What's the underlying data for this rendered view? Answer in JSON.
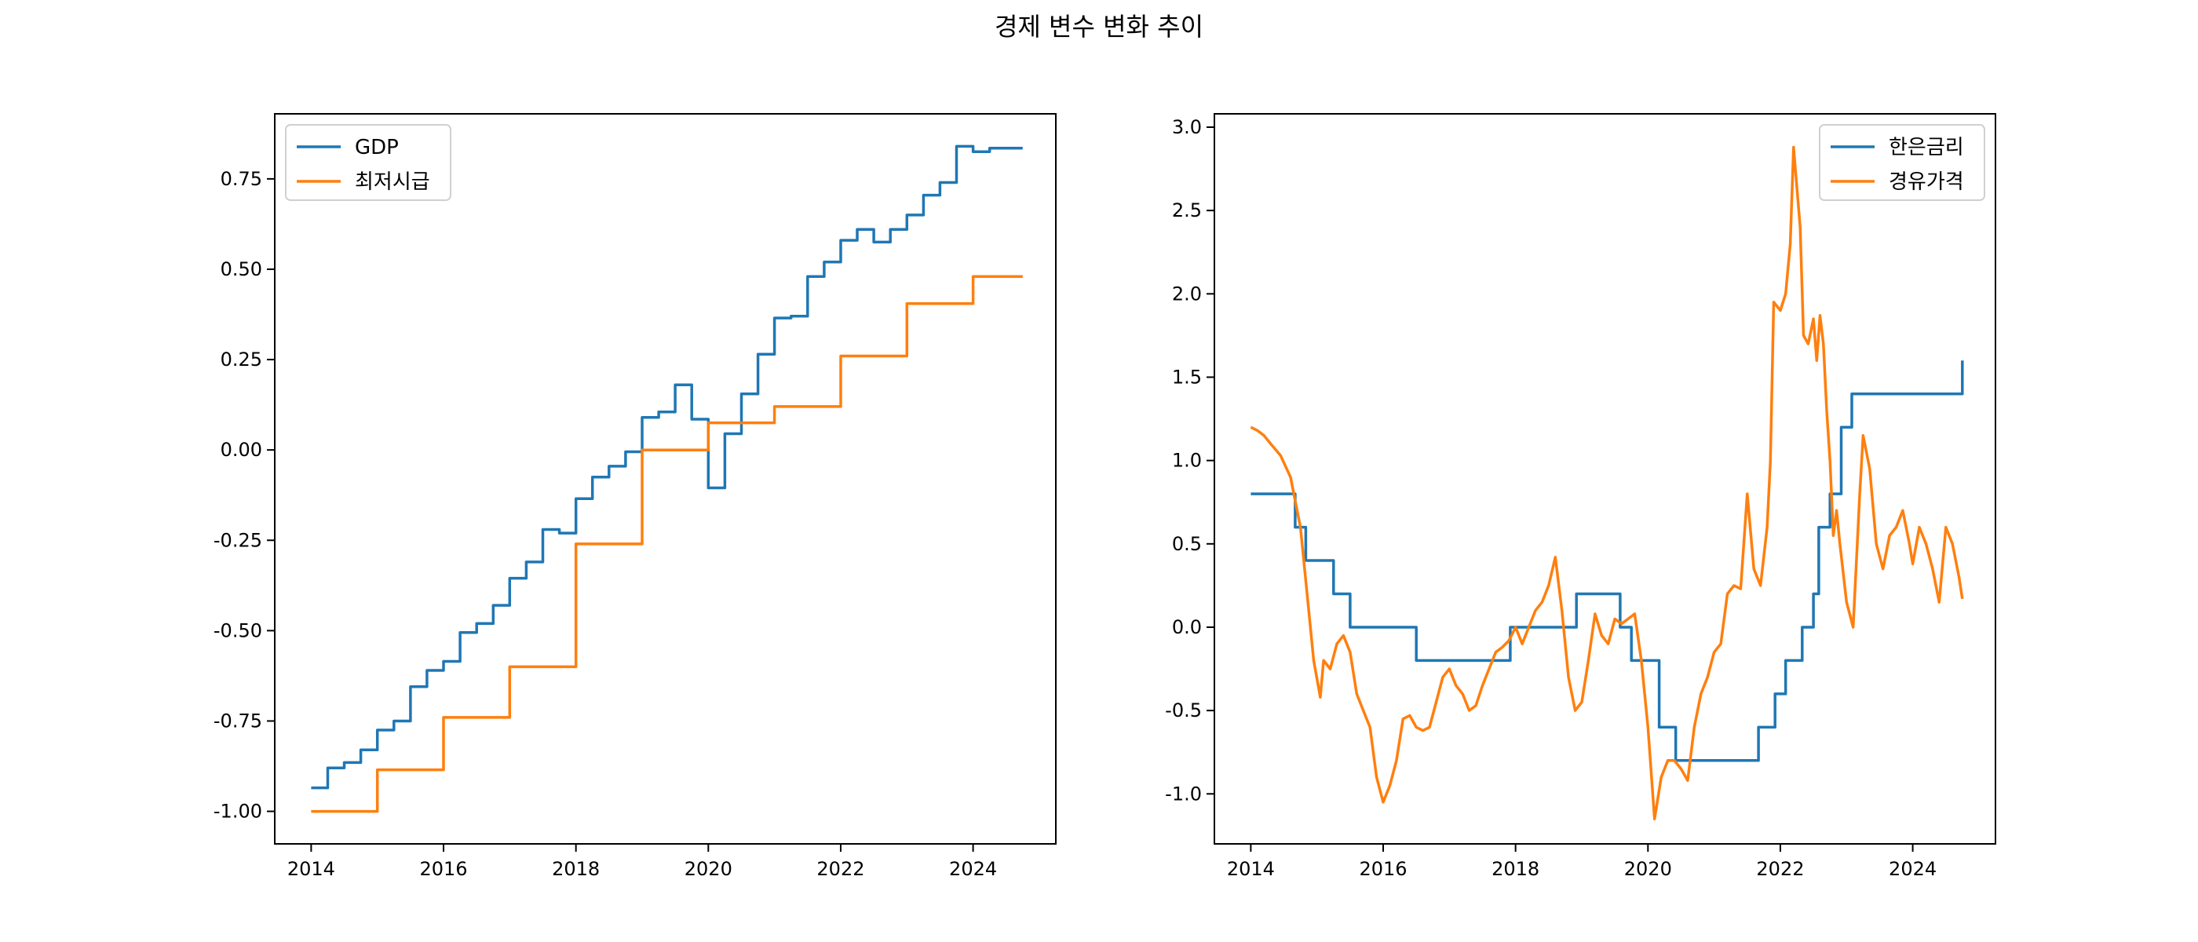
{
  "chart_data": {
    "title": "경제 변수 변화 추이",
    "panels": [
      {
        "type": "line",
        "legend": "top-left",
        "xlim": [
          2013.45,
          2025.25
        ],
        "ylim": [
          -1.09,
          0.93
        ],
        "xticks": [
          2014,
          2016,
          2018,
          2020,
          2022,
          2024
        ],
        "yticks": [
          -1.0,
          -0.75,
          -0.5,
          -0.25,
          0.0,
          0.25,
          0.5,
          0.75
        ],
        "ytick_labels": [
          "-1.00",
          "-0.75",
          "-0.50",
          "-0.25",
          "0.00",
          "0.25",
          "0.50",
          "0.75"
        ],
        "series": [
          {
            "name": "GDP",
            "color": "#1f77b4",
            "step": true,
            "x": [
              2014.0,
              2014.25,
              2014.5,
              2014.75,
              2015.0,
              2015.25,
              2015.5,
              2015.75,
              2016.0,
              2016.25,
              2016.5,
              2016.75,
              2017.0,
              2017.25,
              2017.5,
              2017.75,
              2018.0,
              2018.25,
              2018.5,
              2018.75,
              2019.0,
              2019.25,
              2019.5,
              2019.75,
              2020.0,
              2020.25,
              2020.5,
              2020.75,
              2021.0,
              2021.25,
              2021.5,
              2021.75,
              2022.0,
              2022.25,
              2022.5,
              2022.75,
              2023.0,
              2023.25,
              2023.5,
              2023.75,
              2024.0,
              2024.25,
              2024.5,
              2024.75
            ],
            "y": [
              -0.935,
              -0.88,
              -0.865,
              -0.83,
              -0.775,
              -0.75,
              -0.655,
              -0.61,
              -0.585,
              -0.505,
              -0.48,
              -0.43,
              -0.355,
              -0.31,
              -0.22,
              -0.23,
              -0.135,
              -0.075,
              -0.045,
              -0.005,
              0.09,
              0.105,
              0.18,
              0.085,
              -0.105,
              0.045,
              0.155,
              0.265,
              0.365,
              0.37,
              0.48,
              0.52,
              0.58,
              0.61,
              0.575,
              0.61,
              0.65,
              0.705,
              0.74,
              0.84,
              0.825,
              0.835,
              0.835,
              0.835
            ]
          },
          {
            "name": "최저시급",
            "color": "#ff7f0e",
            "step": true,
            "x": [
              2014.0,
              2015.0,
              2016.0,
              2017.0,
              2018.0,
              2019.0,
              2020.0,
              2021.0,
              2022.0,
              2023.0,
              2024.0,
              2024.75
            ],
            "y": [
              -1.0,
              -0.885,
              -0.74,
              -0.6,
              -0.26,
              0.0,
              0.075,
              0.12,
              0.26,
              0.405,
              0.48,
              0.48
            ]
          }
        ]
      },
      {
        "type": "line",
        "legend": "top-right",
        "xlim": [
          2013.45,
          2025.25
        ],
        "ylim": [
          -1.3,
          3.08
        ],
        "xticks": [
          2014,
          2016,
          2018,
          2020,
          2022,
          2024
        ],
        "yticks": [
          -1.0,
          -0.5,
          0.0,
          0.5,
          1.0,
          1.5,
          2.0,
          2.5,
          3.0
        ],
        "ytick_labels": [
          "-1.0",
          "-0.5",
          "0.0",
          "0.5",
          "1.0",
          "1.5",
          "2.0",
          "2.5",
          "3.0"
        ],
        "series": [
          {
            "name": "한은금리",
            "color": "#1f77b4",
            "step": true,
            "x": [
              2014.0,
              2014.67,
              2014.83,
              2015.25,
              2015.5,
              2016.5,
              2017.92,
              2018.92,
              2019.58,
              2019.75,
              2020.17,
              2020.42,
              2021.67,
              2021.92,
              2022.08,
              2022.33,
              2022.5,
              2022.58,
              2022.75,
              2022.92,
              2023.08,
              2024.75
            ],
            "y": [
              0.8,
              0.6,
              0.4,
              0.2,
              0.0,
              -0.2,
              0.0,
              0.2,
              0.0,
              -0.2,
              -0.6,
              -0.8,
              -0.6,
              -0.4,
              -0.2,
              0.0,
              0.2,
              0.6,
              0.8,
              1.2,
              1.4,
              1.6
            ]
          },
          {
            "name": "경유가격",
            "color": "#ff7f0e",
            "step": false,
            "x": [
              2014.0,
              2014.1,
              2014.2,
              2014.3,
              2014.45,
              2014.6,
              2014.75,
              2014.85,
              2014.95,
              2015.05,
              2015.1,
              2015.2,
              2015.3,
              2015.4,
              2015.5,
              2015.6,
              2015.7,
              2015.8,
              2015.9,
              2016.0,
              2016.1,
              2016.2,
              2016.3,
              2016.4,
              2016.5,
              2016.6,
              2016.7,
              2016.8,
              2016.9,
              2017.0,
              2017.1,
              2017.2,
              2017.3,
              2017.4,
              2017.5,
              2017.6,
              2017.7,
              2017.8,
              2017.9,
              2018.0,
              2018.1,
              2018.2,
              2018.3,
              2018.4,
              2018.5,
              2018.6,
              2018.7,
              2018.8,
              2018.9,
              2019.0,
              2019.1,
              2019.2,
              2019.3,
              2019.4,
              2019.5,
              2019.6,
              2019.7,
              2019.8,
              2019.9,
              2020.0,
              2020.1,
              2020.2,
              2020.3,
              2020.4,
              2020.5,
              2020.6,
              2020.7,
              2020.8,
              2020.9,
              2021.0,
              2021.1,
              2021.2,
              2021.3,
              2021.4,
              2021.5,
              2021.6,
              2021.7,
              2021.8,
              2021.85,
              2021.9,
              2022.0,
              2022.08,
              2022.15,
              2022.2,
              2022.3,
              2022.35,
              2022.42,
              2022.5,
              2022.55,
              2022.6,
              2022.65,
              2022.7,
              2022.75,
              2022.8,
              2022.85,
              2022.9,
              2023.0,
              2023.1,
              2023.2,
              2023.25,
              2023.35,
              2023.45,
              2023.55,
              2023.65,
              2023.75,
              2023.85,
              2023.95,
              2024.0,
              2024.1,
              2024.2,
              2024.3,
              2024.4,
              2024.5,
              2024.6,
              2024.7,
              2024.75
            ],
            "y": [
              1.2,
              1.18,
              1.15,
              1.1,
              1.03,
              0.9,
              0.6,
              0.2,
              -0.2,
              -0.42,
              -0.2,
              -0.25,
              -0.1,
              -0.05,
              -0.15,
              -0.4,
              -0.5,
              -0.6,
              -0.9,
              -1.05,
              -0.95,
              -0.8,
              -0.55,
              -0.53,
              -0.6,
              -0.62,
              -0.6,
              -0.45,
              -0.3,
              -0.25,
              -0.35,
              -0.4,
              -0.5,
              -0.47,
              -0.35,
              -0.25,
              -0.15,
              -0.12,
              -0.08,
              0.0,
              -0.1,
              0.0,
              0.1,
              0.15,
              0.25,
              0.42,
              0.1,
              -0.3,
              -0.5,
              -0.45,
              -0.2,
              0.08,
              -0.05,
              -0.1,
              0.05,
              0.02,
              0.05,
              0.08,
              -0.2,
              -0.6,
              -1.15,
              -0.9,
              -0.8,
              -0.8,
              -0.85,
              -0.92,
              -0.6,
              -0.4,
              -0.3,
              -0.15,
              -0.1,
              0.2,
              0.25,
              0.23,
              0.8,
              0.35,
              0.25,
              0.6,
              1.0,
              1.95,
              1.9,
              2.0,
              2.3,
              2.88,
              2.4,
              1.75,
              1.7,
              1.85,
              1.6,
              1.87,
              1.7,
              1.3,
              1.0,
              0.55,
              0.7,
              0.5,
              0.15,
              0.0,
              0.8,
              1.15,
              0.95,
              0.5,
              0.35,
              0.55,
              0.6,
              0.7,
              0.5,
              0.38,
              0.6,
              0.5,
              0.35,
              0.15,
              0.6,
              0.5,
              0.3,
              0.17
            ]
          }
        ]
      }
    ]
  }
}
